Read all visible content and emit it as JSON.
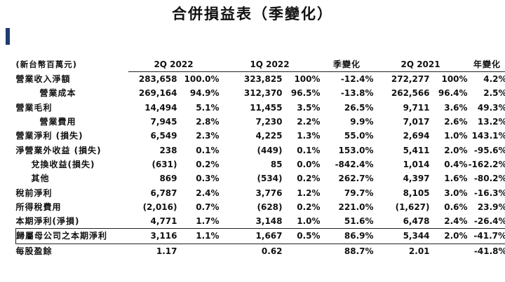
{
  "title": "合併損益表（季變化）",
  "colors": {
    "accent": "#1f3b73"
  },
  "table": {
    "unit_label": "(新台幣百萬元)",
    "headers": {
      "q2_2022": "2Q 2022",
      "q1_2022": "1Q 2022",
      "qoq": "季變化",
      "q2_2021": "2Q 2021",
      "yoy": "年變化"
    },
    "rows": [
      {
        "label": "營業收入淨額",
        "v1": "283,658",
        "p1": "100.0%",
        "v2": "323,825",
        "p2": "100%",
        "qoq": "-12.4%",
        "v3": "272,277",
        "p3": "100%",
        "yoy": "4.2%"
      },
      {
        "label": "營業成本",
        "v1": "269,164",
        "p1": "94.9%",
        "v2": "312,370",
        "p2": "96.5%",
        "qoq": "-13.8%",
        "v3": "262,566",
        "p3": "96.4%",
        "yoy": "2.5%"
      },
      {
        "label": "營業毛利",
        "v1": "14,494",
        "p1": "5.1%",
        "v2": "11,455",
        "p2": "3.5%",
        "qoq": "26.5%",
        "v3": "9,711",
        "p3": "3.6%",
        "yoy": "49.3%"
      },
      {
        "label": "營業費用",
        "v1": "7,945",
        "p1": "2.8%",
        "v2": "7,230",
        "p2": "2.2%",
        "qoq": "9.9%",
        "v3": "7,017",
        "p3": "2.6%",
        "yoy": "13.2%"
      },
      {
        "label": "營業淨利 (損失)",
        "v1": "6,549",
        "p1": "2.3%",
        "v2": "4,225",
        "p2": "1.3%",
        "qoq": "55.0%",
        "v3": "2,694",
        "p3": "1.0%",
        "yoy": "143.1%"
      },
      {
        "label": "淨營業外收益 (損失)",
        "v1": "238",
        "p1": "0.1%",
        "v2": "(449)",
        "p2": "0.1%",
        "qoq": "153.0%",
        "v3": "5,411",
        "p3": "2.0%",
        "yoy": "-95.6%"
      },
      {
        "label": "兌換收益(損失)",
        "v1": "(631)",
        "p1": "0.2%",
        "v2": "85",
        "p2": "0.0%",
        "qoq": "-842.4%",
        "v3": "1,014",
        "p3": "0.4%",
        "yoy": "-162.2%"
      },
      {
        "label": "其他",
        "v1": "869",
        "p1": "0.3%",
        "v2": "(534)",
        "p2": "0.2%",
        "qoq": "262.7%",
        "v3": "4,397",
        "p3": "1.6%",
        "yoy": "-80.2%"
      },
      {
        "label": "稅前淨利",
        "v1": "6,787",
        "p1": "2.4%",
        "v2": "3,776",
        "p2": "1.2%",
        "qoq": "79.7%",
        "v3": "8,105",
        "p3": "3.0%",
        "yoy": "-16.3%"
      },
      {
        "label": "所得稅費用",
        "v1": "(2,016)",
        "p1": "0.7%",
        "v2": "(628)",
        "p2": "0.2%",
        "qoq": "221.0%",
        "v3": "(1,627)",
        "p3": "0.6%",
        "yoy": "23.9%"
      },
      {
        "label": "本期淨利(淨損)",
        "v1": "4,771",
        "p1": "1.7%",
        "v2": "3,148",
        "p2": "1.0%",
        "qoq": "51.6%",
        "v3": "6,478",
        "p3": "2.4%",
        "yoy": "-26.4%"
      },
      {
        "label": "歸屬母公司之本期淨利",
        "v1": "3,116",
        "p1": "1.1%",
        "v2": "1,667",
        "p2": "0.5%",
        "qoq": "86.9%",
        "v3": "5,344",
        "p3": "2.0%",
        "yoy": "-41.7%"
      },
      {
        "label": "每股盈餘",
        "v1": "1.17",
        "p1": "",
        "v2": "0.62",
        "p2": "",
        "qoq": "88.7%",
        "v3": "2.01",
        "p3": "",
        "yoy": "-41.8%"
      }
    ]
  }
}
